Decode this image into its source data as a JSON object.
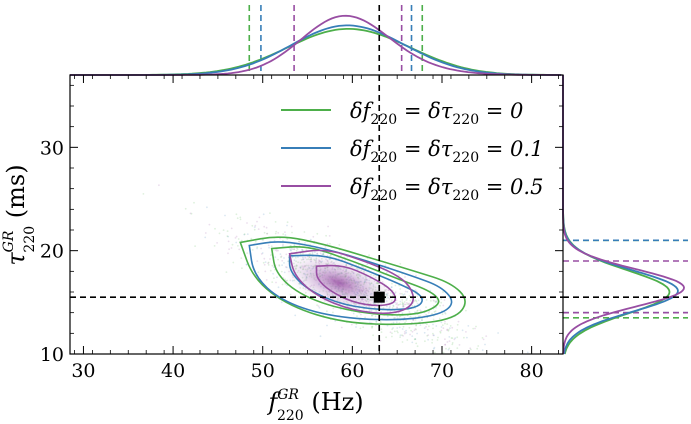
{
  "chart_data": {
    "type": "scatter",
    "xlabel": "f^GR_220 (Hz)",
    "ylabel": "τ^GR_220 (ms)",
    "xlabel_parts": {
      "main": "f",
      "sup": "GR",
      "sub": "220",
      "unit": " (Hz)"
    },
    "ylabel_parts": {
      "main": "τ",
      "sup": "GR",
      "sub": "220",
      "unit": " (ms)"
    },
    "xlim": [
      28.5,
      83.5
    ],
    "ylim": [
      10,
      37
    ],
    "x_ticks": [
      30,
      40,
      50,
      60,
      70,
      80
    ],
    "y_ticks": [
      10,
      20,
      30
    ],
    "legend_position": "top-right",
    "reference_point": {
      "x": 63,
      "y": 15.5
    },
    "series": [
      {
        "name": "δf220 = δτ220 = 0",
        "label_parts": {
          "pre": "δf",
          "sub1": "220",
          "mid": " = δτ",
          "sub2": "220",
          "post": " = 0"
        },
        "color": "#4daf4a",
        "contours": [
          [
            [
              47.5,
              20.8
            ],
            [
              52,
              21.5
            ],
            [
              57,
              20.6
            ],
            [
              62,
              19.3
            ],
            [
              67,
              18
            ],
            [
              71,
              16.9
            ],
            [
              73,
              15.2
            ],
            [
              71.5,
              13.4
            ],
            [
              66,
              12.8
            ],
            [
              59,
              13
            ],
            [
              53,
              14.6
            ],
            [
              49,
              17.2
            ],
            [
              47.5,
              20.8
            ]
          ],
          [
            [
              51,
              20.2
            ],
            [
              55,
              20.5
            ],
            [
              60,
              19
            ],
            [
              65,
              17.3
            ],
            [
              69,
              16
            ],
            [
              70,
              14.8
            ],
            [
              67,
              13.7
            ],
            [
              61,
              13.9
            ],
            [
              55,
              15.3
            ],
            [
              51.5,
              17.6
            ],
            [
              51,
              20.2
            ]
          ]
        ],
        "bounds_x": [
          48.5,
          67.8
        ],
        "bounds_y": [
          13.5,
          21
        ]
      },
      {
        "name": "δf220 = δτ220 = 0.1",
        "label_parts": {
          "pre": "δf",
          "sub1": "220",
          "mid": " = δτ",
          "sub2": "220",
          "post": " = 0.1"
        },
        "color": "#377eb8",
        "contours": [
          [
            [
              48.5,
              20.5
            ],
            [
              52,
              21
            ],
            [
              57,
              20.2
            ],
            [
              62,
              18.9
            ],
            [
              66.5,
              17.6
            ],
            [
              70,
              16.5
            ],
            [
              71.5,
              14.9
            ],
            [
              69.5,
              13.7
            ],
            [
              64,
              13.2
            ],
            [
              57,
              13.7
            ],
            [
              52,
              15.2
            ],
            [
              49,
              17.6
            ],
            [
              48.5,
              20.5
            ]
          ],
          [
            [
              53,
              19.5
            ],
            [
              57,
              19.6
            ],
            [
              61,
              18.3
            ],
            [
              65,
              16.9
            ],
            [
              68,
              15.6
            ],
            [
              67.5,
              14.5
            ],
            [
              64,
              14.2
            ],
            [
              59,
              14.7
            ],
            [
              55,
              16.2
            ],
            [
              53,
              18
            ],
            [
              53,
              19.5
            ]
          ]
        ],
        "bounds_x": [
          49.8,
          66.6
        ],
        "bounds_y": [
          14,
          21
        ]
      },
      {
        "name": "δf220 = δτ220 = 0.5",
        "label_parts": {
          "pre": "δf",
          "sub1": "220",
          "mid": " = δτ",
          "sub2": "220",
          "post": " = 0.5"
        },
        "color": "#984ea3",
        "contours": [
          [
            [
              53,
              19.7
            ],
            [
              57,
              20.2
            ],
            [
              61,
              19.1
            ],
            [
              64.5,
              17.9
            ],
            [
              66.5,
              16.6
            ],
            [
              67,
              14.8
            ],
            [
              64.5,
              13.8
            ],
            [
              60,
              14.2
            ],
            [
              56,
              15.6
            ],
            [
              53.5,
              17.6
            ],
            [
              53,
              19.7
            ]
          ],
          [
            [
              56,
              18.5
            ],
            [
              59,
              18.6
            ],
            [
              62,
              17.5
            ],
            [
              64.5,
              16.2
            ],
            [
              65,
              15
            ],
            [
              63,
              14.6
            ],
            [
              60,
              15
            ],
            [
              57.5,
              16.1
            ],
            [
              56,
              17.3
            ],
            [
              56,
              18.5
            ]
          ]
        ],
        "bounds_x": [
          53.5,
          65.5
        ],
        "bounds_y": [
          14,
          19
        ]
      }
    ]
  }
}
